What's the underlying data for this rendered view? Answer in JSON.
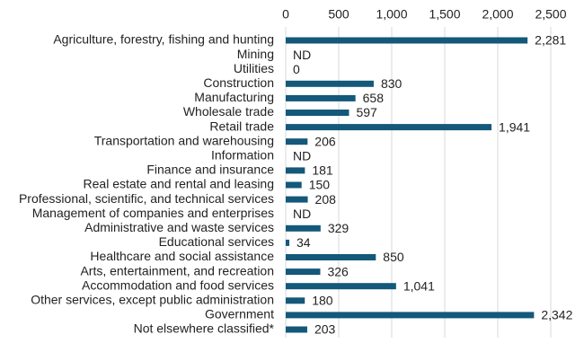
{
  "chart_data": {
    "type": "bar",
    "orientation": "horizontal",
    "color": "#14587a",
    "grid": true,
    "categories": [
      "Agriculture, forestry, fishing and hunting",
      "Mining",
      "Utilities",
      "Construction",
      "Manufacturing",
      "Wholesale trade",
      "Retail trade",
      "Transportation and warehousing",
      "Information",
      "Finance and insurance",
      "Real estate and rental and leasing",
      "Professional, scientific, and technical services",
      "Management of companies and enterprises",
      "Administrative and waste services",
      "Educational services",
      "Healthcare and social assistance",
      "Arts, entertainment, and recreation",
      "Accommodation and food services",
      "Other services, except public administration",
      "Government",
      "Not elsewhere classified*"
    ],
    "values": [
      2281,
      null,
      0,
      830,
      658,
      597,
      1941,
      206,
      null,
      181,
      150,
      208,
      null,
      329,
      34,
      850,
      326,
      1041,
      180,
      2342,
      203
    ],
    "value_labels": [
      "2,281",
      "ND",
      "0",
      "830",
      "658",
      "597",
      "1,941",
      "206",
      "ND",
      "181",
      "150",
      "208",
      "ND",
      "329",
      "34",
      "850",
      "326",
      "1,041",
      "180",
      "2,342",
      "203"
    ],
    "xlim": [
      0,
      2500
    ],
    "xticks": [
      0,
      500,
      {
        "value": 1000,
        "label": "1,000"
      },
      {
        "value": 1500,
        "label": "1,500"
      },
      {
        "value": 2000,
        "label": "2,000"
      },
      {
        "value": 2500,
        "label": "2,500"
      }
    ]
  }
}
